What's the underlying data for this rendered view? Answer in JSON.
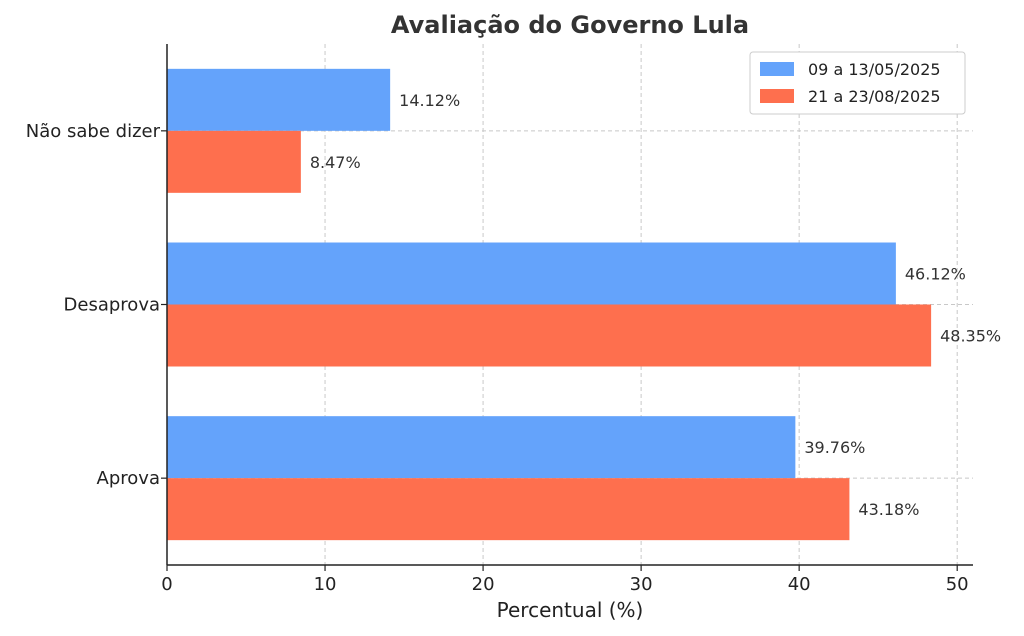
{
  "chart_data": {
    "type": "bar",
    "orientation": "horizontal",
    "title": "Avaliação do Governo Lula",
    "xlabel": "Percentual (%)",
    "ylabel": "",
    "xlim": [
      0,
      51
    ],
    "xticks": [
      "0",
      "10",
      "20",
      "30",
      "40",
      "50"
    ],
    "grid": true,
    "legend_position": "top-right",
    "categories": [
      "Não sabe dizer",
      "Desaprova",
      "Aprova"
    ],
    "series": [
      {
        "name": "09 a 13/05/2025",
        "color": "#64a3fb",
        "values": [
          14.12,
          46.12,
          39.76
        ],
        "labels": [
          "14.12%",
          "46.12%",
          "39.76%"
        ]
      },
      {
        "name": "21 a 23/08/2025",
        "color": "#fe6f4e",
        "values": [
          8.47,
          48.35,
          43.18
        ],
        "labels": [
          "8.47%",
          "48.35%",
          "43.18%"
        ]
      }
    ]
  }
}
